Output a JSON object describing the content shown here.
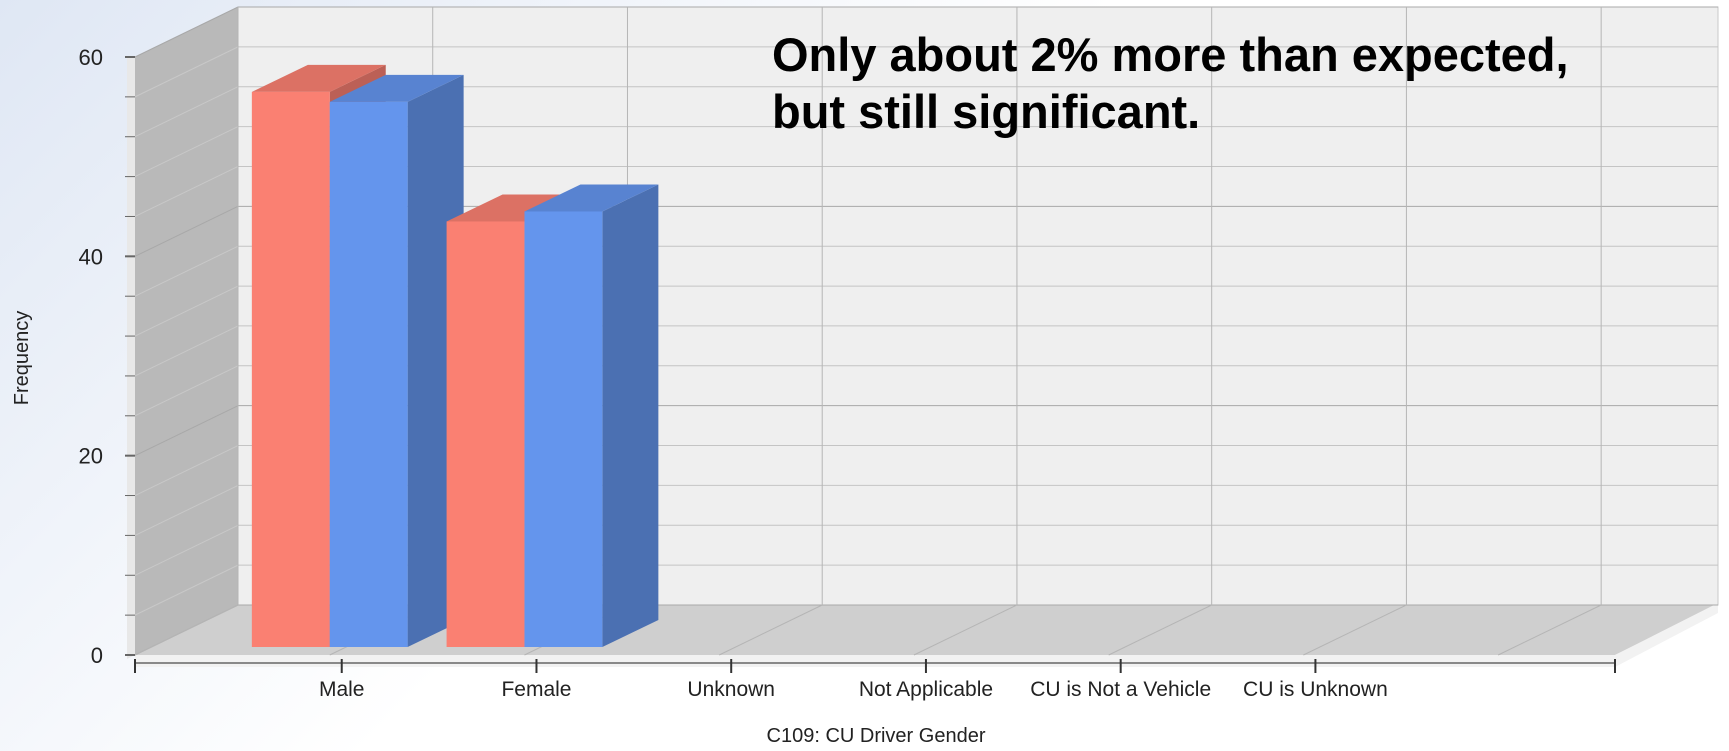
{
  "chart_data": {
    "type": "bar",
    "style": "3d-clustered-column",
    "categories": [
      "Male",
      "Female",
      "Unknown",
      "Not Applicable",
      "CU is Not a Vehicle",
      "CU is Unknown"
    ],
    "series": [
      {
        "color": "#fa8072",
        "values": [
          56.5,
          43.5,
          0,
          0,
          0,
          0
        ]
      },
      {
        "color": "#6495ed",
        "values": [
          55.5,
          44.5,
          0,
          0,
          0,
          0
        ]
      }
    ],
    "y_ticks": [
      0,
      20,
      40,
      60
    ],
    "ylim": [
      0,
      60
    ],
    "xlabel": "C109: CU Driver Gender",
    "ylabel": "Frequency",
    "grid": true,
    "annotation_lines": [
      "Only about 2% more than expected,",
      "but still significant."
    ]
  }
}
